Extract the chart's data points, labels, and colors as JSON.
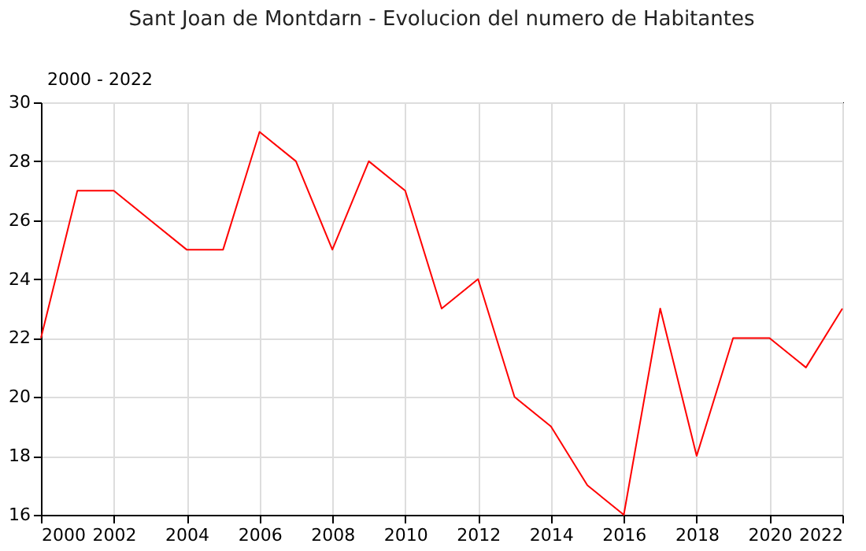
{
  "chart_data": {
    "type": "line",
    "title": "Sant Joan de Montdarn - Evolucion del numero de Habitantes",
    "annotations": [
      "2000 - 2022"
    ],
    "x": [
      2000,
      2001,
      2002,
      2003,
      2004,
      2005,
      2006,
      2007,
      2008,
      2009,
      2010,
      2011,
      2012,
      2013,
      2014,
      2015,
      2016,
      2017,
      2018,
      2019,
      2020,
      2021,
      2022
    ],
    "series": [
      {
        "color": "#ff0000",
        "values": [
          22,
          27,
          27,
          26,
          25,
          25,
          29,
          28,
          25,
          28,
          27,
          23,
          24,
          20,
          19,
          17,
          16,
          23,
          18,
          22,
          22,
          21,
          23
        ]
      }
    ],
    "xlim": [
      2000,
      2022
    ],
    "xticks": [
      2000,
      2002,
      2004,
      2006,
      2008,
      2010,
      2012,
      2014,
      2016,
      2018,
      2020,
      2022
    ],
    "ylim": [
      16,
      30
    ],
    "yticks": [
      16,
      18,
      20,
      22,
      24,
      26,
      28,
      30
    ],
    "grid": true,
    "marker": "none",
    "line_style": "solid"
  }
}
